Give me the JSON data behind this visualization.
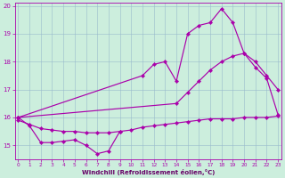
{
  "color": "#aa00aa",
  "bg_color": "#cceedd",
  "grid_color": "#99bbcc",
  "xlabel": "Windchill (Refroidissement éolien,°C)",
  "ylim": [
    14.5,
    20.1
  ],
  "xlim": [
    -0.3,
    23.3
  ],
  "yticks": [
    15,
    16,
    17,
    18,
    19,
    20
  ],
  "xticks": [
    0,
    1,
    2,
    3,
    4,
    5,
    6,
    7,
    8,
    9,
    10,
    11,
    12,
    13,
    14,
    15,
    16,
    17,
    18,
    19,
    20,
    21,
    22,
    23
  ],
  "curve1_x": [
    0,
    1,
    2,
    3,
    4,
    5,
    6,
    7,
    8,
    9
  ],
  "curve1_y": [
    16.0,
    15.7,
    15.1,
    15.1,
    15.15,
    15.2,
    15.0,
    14.7,
    14.8,
    15.5
  ],
  "curve2_x": [
    0,
    1,
    2,
    3,
    4,
    5,
    6,
    7,
    8,
    9,
    10,
    11,
    12,
    13,
    14,
    15,
    16,
    17,
    18,
    19,
    20,
    21,
    22,
    23
  ],
  "curve2_y": [
    15.9,
    15.75,
    15.6,
    15.55,
    15.5,
    15.5,
    15.45,
    15.45,
    15.45,
    15.5,
    15.55,
    15.65,
    15.7,
    15.75,
    15.8,
    15.85,
    15.9,
    15.95,
    15.95,
    15.95,
    16.0,
    16.0,
    16.0,
    16.05
  ],
  "curve3_x": [
    0,
    11,
    12,
    13,
    14,
    15,
    16,
    17,
    18,
    19,
    20,
    21,
    22,
    23
  ],
  "curve3_y": [
    16.0,
    17.5,
    17.9,
    18.0,
    17.3,
    19.0,
    19.3,
    19.4,
    19.9,
    19.4,
    18.3,
    18.0,
    17.5,
    17.0
  ],
  "curve4_x": [
    0,
    14,
    15,
    16,
    17,
    18,
    19,
    20,
    21,
    22,
    23
  ],
  "curve4_y": [
    16.0,
    16.5,
    16.9,
    17.3,
    17.7,
    18.0,
    18.2,
    18.3,
    17.8,
    17.4,
    16.1
  ]
}
